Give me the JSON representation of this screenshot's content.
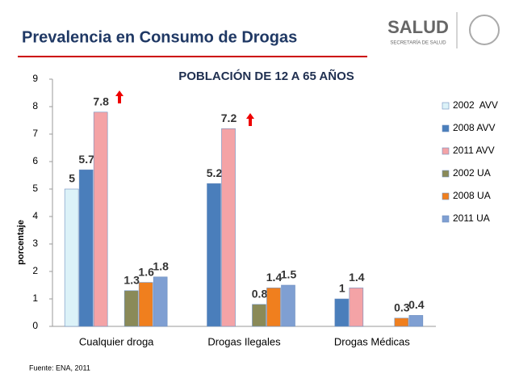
{
  "logo": {
    "text": "SALUD",
    "subtitle": "SECRETARÍA DE SALUD"
  },
  "chart_data": {
    "type": "bar",
    "title": "Prevalencia en Consumo de Drogas",
    "subtitle": "POBLACIÓN DE 12 A 65 AÑOS",
    "y_label": "porcentaje",
    "source": "Fuente: ENA, 2011",
    "categories": [
      "Cualquier droga",
      "Drogas Ilegales",
      "Drogas Médicas"
    ],
    "series": [
      {
        "name": "2002  AVV",
        "color": "#dcf2f8",
        "values": [
          5,
          null,
          null
        ]
      },
      {
        "name": "2008 AVV",
        "color": "#4a7ebb",
        "values": [
          5.7,
          5.2,
          1
        ]
      },
      {
        "name": "2011 AVV",
        "color": "#f4a3a6",
        "values": [
          7.8,
          7.2,
          1.4
        ]
      },
      {
        "name": "2002 UA",
        "color": "#8a8a58",
        "values": [
          1.3,
          0.8,
          null
        ]
      },
      {
        "name": "2008 UA",
        "color": "#f07f1e",
        "values": [
          1.6,
          1.4,
          0.3
        ]
      },
      {
        "name": "2011 UA",
        "color": "#7f9fd2",
        "values": [
          1.8,
          1.5,
          0.4
        ]
      }
    ],
    "ylim": [
      0,
      9
    ],
    "yticks": [
      0,
      1,
      2,
      3,
      4,
      5,
      6,
      7,
      8,
      9
    ],
    "grid": false,
    "legend": "right"
  }
}
